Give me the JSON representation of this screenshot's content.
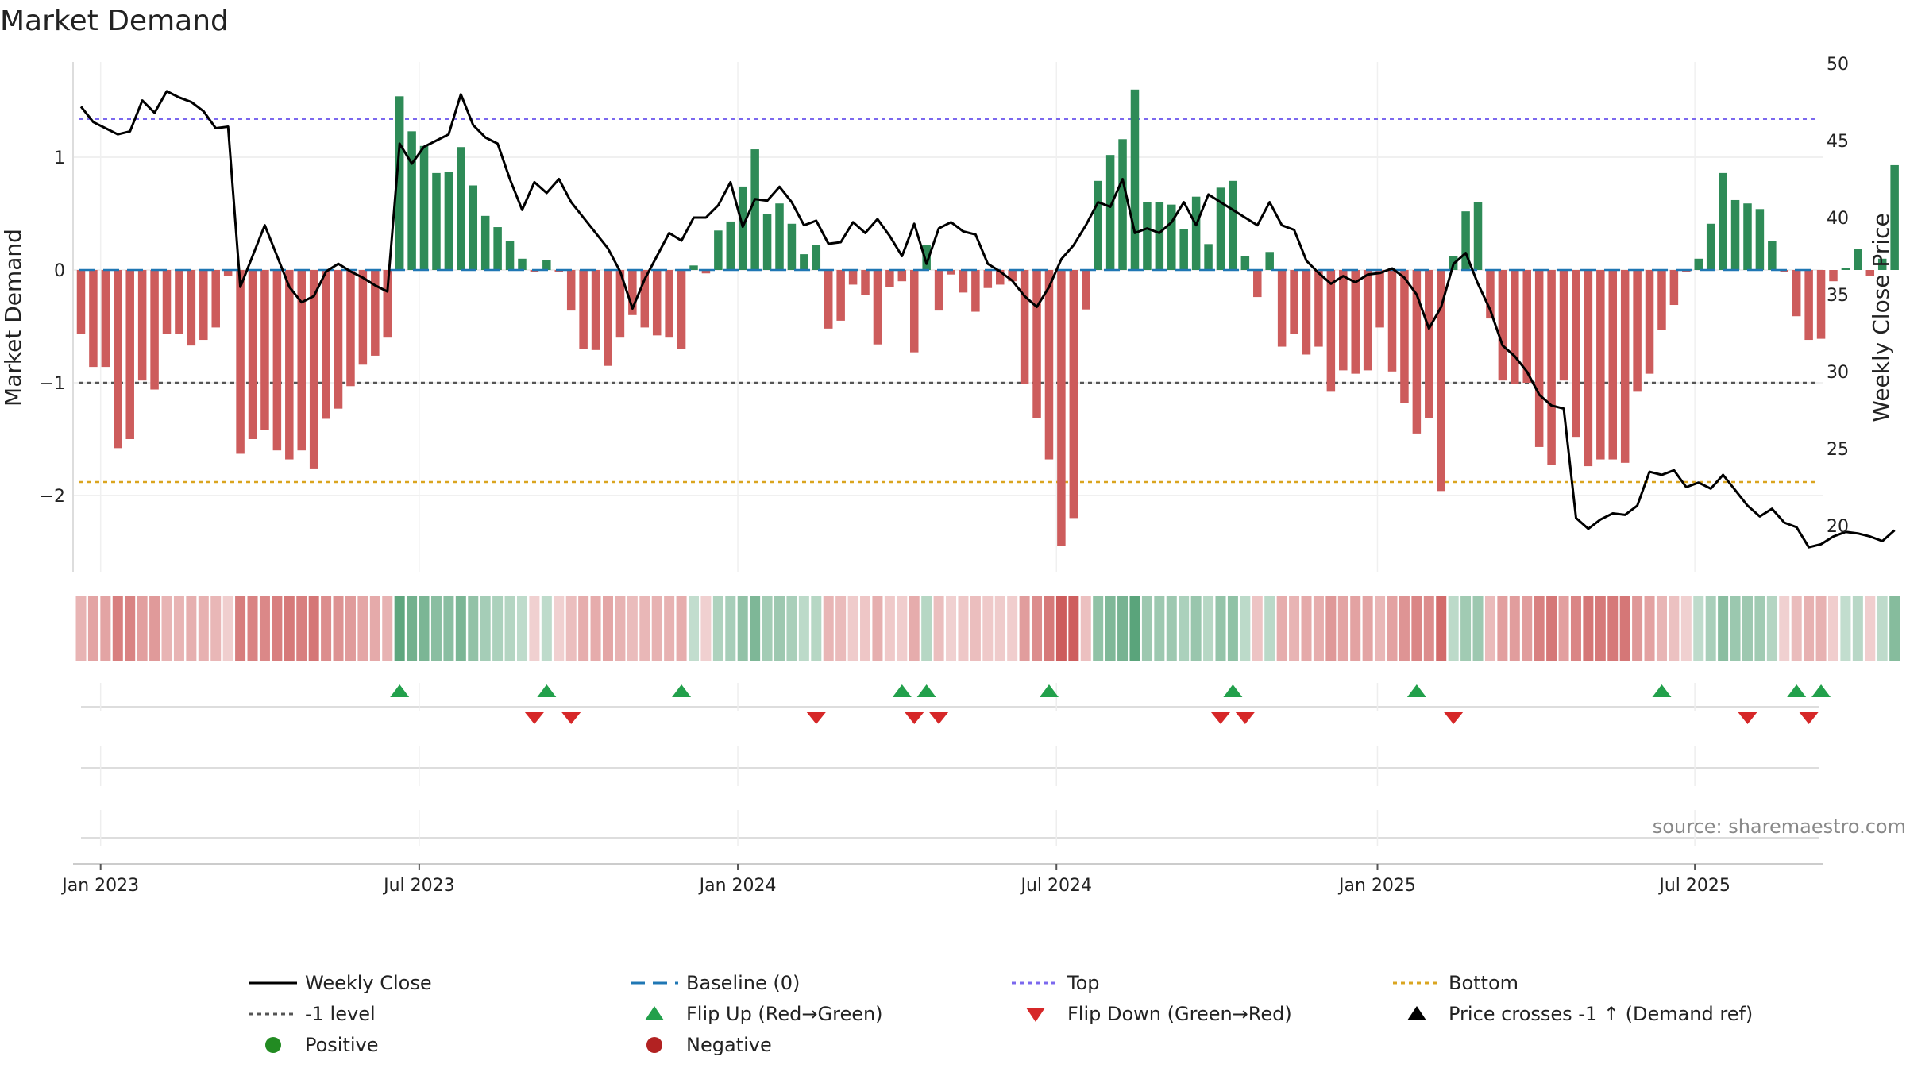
{
  "chart_data": {
    "type": "bar",
    "title": "Market Demand",
    "ylabel_left": "Market Demand",
    "ylabel_right": "Weekly Close Price",
    "source": "source: sharemaestro.com",
    "ylim_left": [
      -2.6,
      1.85
    ],
    "ylim_right": [
      17,
      50
    ],
    "yticks_left": [
      "1",
      "0",
      "−1",
      "−2"
    ],
    "yticks_left_values": [
      1,
      0,
      -1,
      -2
    ],
    "yticks_right": [
      "50",
      "45",
      "40",
      "35",
      "30",
      "25",
      "20"
    ],
    "yticks_right_values": [
      50,
      45,
      40,
      35,
      30,
      25,
      20
    ],
    "xticks": [
      "Jan 2023",
      "Jul 2023",
      "Jan 2024",
      "Jul 2024",
      "Jan 2025",
      "Jul 2025"
    ],
    "xticks_week_index": [
      1.6,
      27.6,
      53.6,
      79.6,
      105.8,
      131.7
    ],
    "reference_lines": {
      "top": 1.34,
      "minus_one": -1.0,
      "bottom": -1.88
    },
    "colors": {
      "positive_bar": "#2e8b57",
      "negative_bar": "#cd5c5c",
      "price_line": "#000000",
      "baseline": "#1f77b4",
      "top_line": "#7b68ee",
      "minus_one_line": "#555555",
      "bottom_line": "#daa520",
      "flip_up": "#22a04b",
      "flip_down": "#d62728",
      "positive_dot": "#228b22",
      "negative_dot": "#b22222"
    },
    "demand": [
      -0.57,
      -0.86,
      -0.86,
      -1.58,
      -1.5,
      -0.98,
      -1.06,
      -0.57,
      -0.57,
      -0.67,
      -0.62,
      -0.51,
      -0.05,
      -1.63,
      -1.5,
      -1.42,
      -1.6,
      -1.68,
      -1.6,
      -1.76,
      -1.32,
      -1.23,
      -1.03,
      -0.84,
      -0.76,
      -0.6,
      1.54,
      1.23,
      1.1,
      0.86,
      0.87,
      1.09,
      0.75,
      0.48,
      0.38,
      0.26,
      0.1,
      -0.02,
      0.09,
      -0.02,
      -0.36,
      -0.7,
      -0.71,
      -0.85,
      -0.6,
      -0.4,
      -0.51,
      -0.58,
      -0.6,
      -0.7,
      0.04,
      -0.03,
      0.35,
      0.43,
      0.74,
      1.07,
      0.5,
      0.59,
      0.41,
      0.14,
      0.22,
      -0.52,
      -0.45,
      -0.13,
      -0.22,
      -0.66,
      -0.15,
      -0.1,
      -0.73,
      0.22,
      -0.36,
      -0.04,
      -0.2,
      -0.37,
      -0.16,
      -0.13,
      -0.1,
      -1.01,
      -1.31,
      -1.68,
      -2.45,
      -2.2,
      -0.35,
      0.79,
      1.02,
      1.16,
      1.6,
      0.6,
      0.6,
      0.58,
      0.36,
      0.65,
      0.23,
      0.73,
      0.79,
      0.12,
      -0.24,
      0.16,
      -0.68,
      -0.57,
      -0.75,
      -0.68,
      -1.08,
      -0.89,
      -0.92,
      -0.89,
      -0.51,
      -0.9,
      -1.18,
      -1.45,
      -1.31,
      -1.96,
      0.12,
      0.52,
      0.6,
      -0.43,
      -0.98,
      -1.01,
      -1.0,
      -1.57,
      -1.73,
      -0.98,
      -1.48,
      -1.74,
      -1.68,
      -1.68,
      -1.71,
      -1.08,
      -0.92,
      -0.53,
      -0.31,
      -0.02,
      0.1,
      0.41,
      0.86,
      0.62,
      0.59,
      0.54,
      0.26,
      -0.02,
      -0.41,
      -0.62,
      -0.61,
      -0.1,
      0.02,
      0.19,
      -0.05,
      0.1,
      0.93
    ],
    "price": [
      47.2,
      46.2,
      45.8,
      45.4,
      45.6,
      47.6,
      46.8,
      48.2,
      47.8,
      47.5,
      46.9,
      45.8,
      45.9,
      35.5,
      37.5,
      39.5,
      37.5,
      35.5,
      34.5,
      34.9,
      36.5,
      37.0,
      36.5,
      36.1,
      35.6,
      35.2,
      44.8,
      43.5,
      44.6,
      45.0,
      45.4,
      48.0,
      46.0,
      45.2,
      44.8,
      42.5,
      40.5,
      42.3,
      41.6,
      42.5,
      41.0,
      40.0,
      39.0,
      38.0,
      36.5,
      34.1,
      36.0,
      37.5,
      39.0,
      38.5,
      40.0,
      40.0,
      40.8,
      42.3,
      39.4,
      41.2,
      41.1,
      42.0,
      41.0,
      39.5,
      39.8,
      38.3,
      38.4,
      39.7,
      39.0,
      39.9,
      38.8,
      37.5,
      39.6,
      37.0,
      39.3,
      39.7,
      39.1,
      38.9,
      37.0,
      36.5,
      35.9,
      34.9,
      34.2,
      35.5,
      37.3,
      38.2,
      39.5,
      41.0,
      40.7,
      42.5,
      39.0,
      39.3,
      39.0,
      39.7,
      41.0,
      39.5,
      41.5,
      41.0,
      40.5,
      40.0,
      39.5,
      41.0,
      39.5,
      39.2,
      37.2,
      36.4,
      35.7,
      36.2,
      35.8,
      36.3,
      36.4,
      36.7,
      36.1,
      35.0,
      32.8,
      34.2,
      37.0,
      37.7,
      35.7,
      34.0,
      31.7,
      31.0,
      30.0,
      28.5,
      27.8,
      27.6,
      20.5,
      19.8,
      20.4,
      20.8,
      20.7,
      21.3,
      23.5,
      23.3,
      23.6,
      22.5,
      22.8,
      22.4,
      23.3,
      22.3,
      21.3,
      20.6,
      21.1,
      20.2,
      19.9,
      18.6,
      18.8,
      19.3,
      19.6,
      19.5,
      19.3,
      19.0,
      19.7
    ],
    "flip_up_weeks": [
      26,
      38,
      49,
      67,
      69,
      79,
      94,
      109,
      129,
      140,
      142
    ],
    "flip_down_weeks": [
      37,
      40,
      60,
      68,
      70,
      93,
      95,
      112,
      136,
      141
    ],
    "legend": [
      {
        "label": "Weekly Close",
        "symbol": "line",
        "color": "#000000"
      },
      {
        "label": "Baseline (0)",
        "symbol": "dash",
        "color": "#1f77b4"
      },
      {
        "label": "Top",
        "symbol": "dot-line",
        "color": "#7b68ee"
      },
      {
        "label": "Bottom",
        "symbol": "dot-line",
        "color": "#daa520"
      },
      {
        "label": "-1 level",
        "symbol": "dot-line",
        "color": "#555555"
      },
      {
        "label": "Flip Up (Red→Green)",
        "symbol": "tri-up",
        "color": "#22a04b"
      },
      {
        "label": "Flip Down (Green→Red)",
        "symbol": "tri-down",
        "color": "#d62728"
      },
      {
        "label": "Price crosses -1 ↑ (Demand ref)",
        "symbol": "tri-up",
        "color": "#000000"
      },
      {
        "label": "Positive",
        "symbol": "circle",
        "color": "#228b22"
      },
      {
        "label": "Negative",
        "symbol": "circle",
        "color": "#b22222"
      }
    ]
  }
}
